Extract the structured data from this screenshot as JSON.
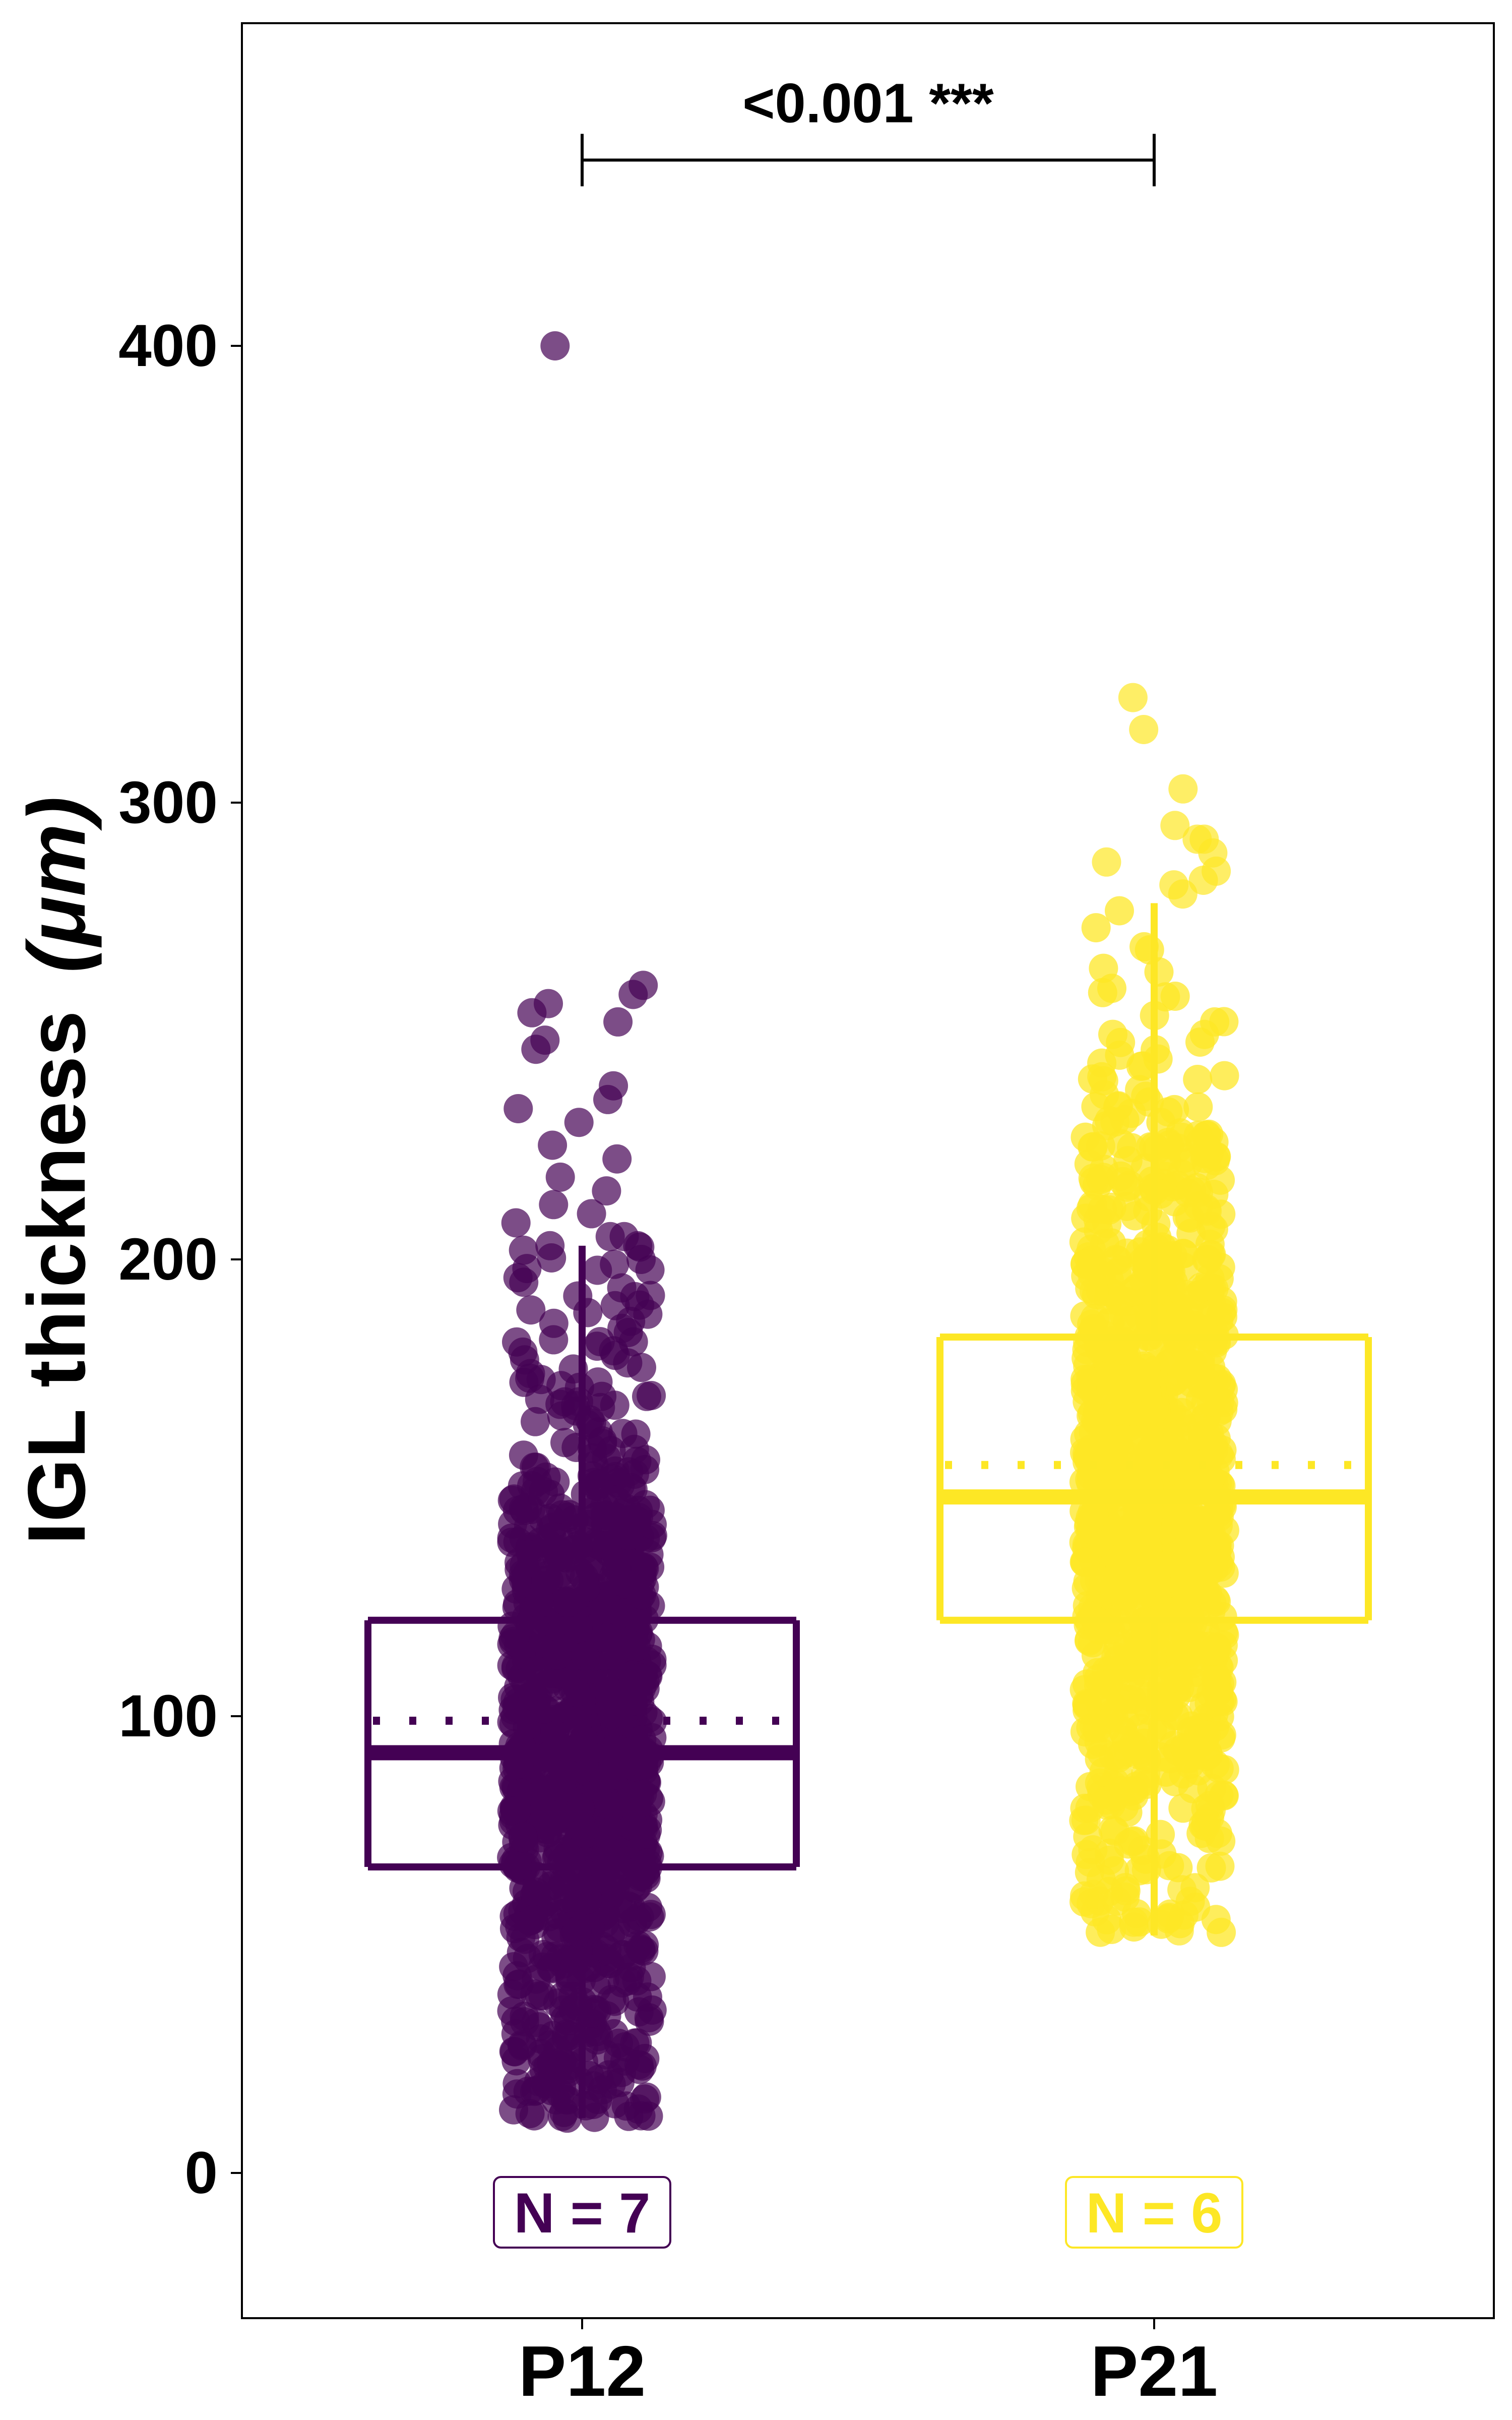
{
  "chart_data": {
    "type": "box",
    "ylabel_main": "IGL thickness",
    "ylabel_unit": "(μm)",
    "ylim": [
      -30,
      465
    ],
    "yticks": [
      0,
      100,
      200,
      300,
      400
    ],
    "ytick_labels": [
      "0",
      "100",
      "200",
      "300",
      "400"
    ],
    "categories": [
      "P12",
      "P21"
    ],
    "groups": [
      {
        "name": "P12",
        "color": "#440154",
        "n_label": "N = 7",
        "whisker_low": 12,
        "q1": 67,
        "median": 92,
        "mean": 99,
        "q3": 121,
        "whisker_high": 203,
        "outliers_shown": [
          400,
          260,
          258,
          256,
          254,
          252,
          248,
          246,
          238,
          235,
          233,
          230,
          225,
          222,
          218,
          215,
          212,
          210,
          208,
          205,
          205,
          203,
          200,
          198,
          196,
          195,
          192,
          190,
          188,
          186,
          184,
          182,
          180,
          178,
          176,
          175,
          174,
          172,
          170,
          168,
          15,
          14,
          13,
          12,
          18,
          20,
          22,
          25,
          28,
          30,
          32,
          35
        ]
      },
      {
        "name": "P21",
        "color": "#fde725",
        "n_label": "N = 6",
        "whisker_low": 52,
        "q1": 121,
        "median": 148,
        "mean": 155,
        "q3": 183,
        "whisker_high": 278,
        "outliers_shown": [
          323,
          316,
          303,
          295,
          292,
          292,
          289,
          287,
          285,
          283,
          282,
          280,
          70,
          68,
          62,
          61,
          53
        ]
      }
    ],
    "significance": {
      "label": "<0.001 ***",
      "y": 442
    }
  }
}
